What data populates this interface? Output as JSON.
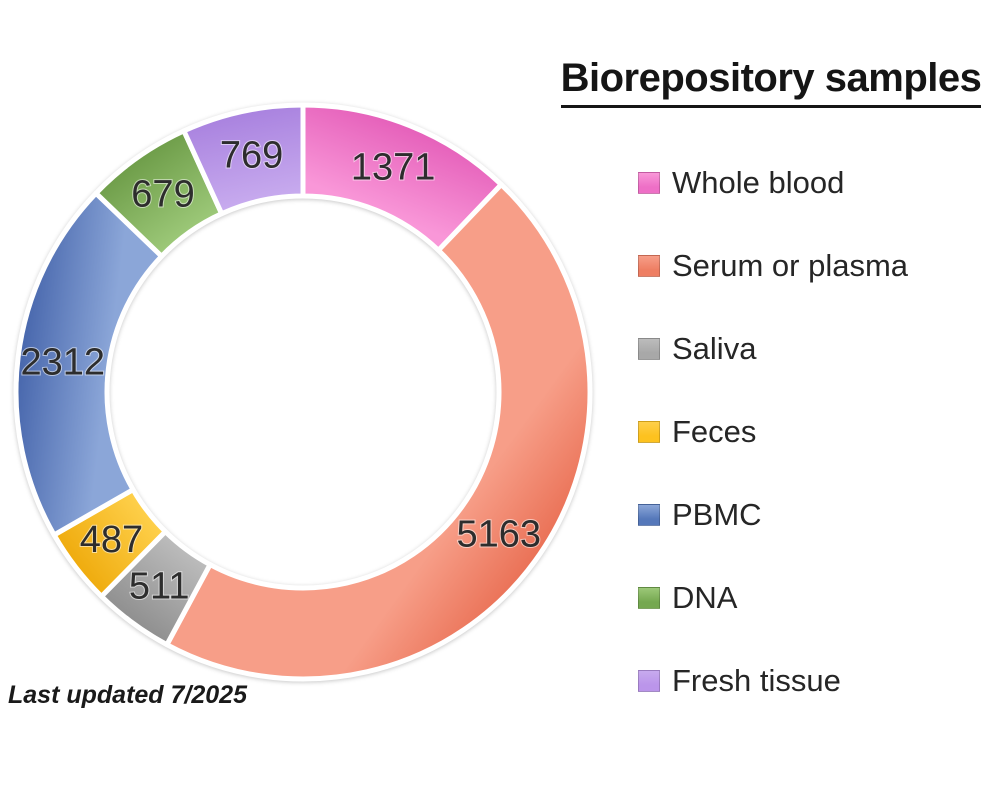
{
  "header": {
    "title": "Biorepository samples"
  },
  "footer": {
    "note": "Last updated 7/2025"
  },
  "chart_data": {
    "type": "pie",
    "subtype": "donut",
    "title": "Biorepository samples",
    "categories": [
      "Whole blood",
      "Serum or plasma",
      "Saliva",
      "Feces",
      "PBMC",
      "DNA",
      "Fresh tissue"
    ],
    "values": [
      1371,
      5163,
      511,
      487,
      2312,
      679,
      769
    ],
    "total": 11292,
    "colors": [
      "#ee6fc6",
      "#ee7e63",
      "#a8a8a8",
      "#fdc21f",
      "#5578ba",
      "#75a850",
      "#bb95ea"
    ],
    "colors_dark": [
      "#e560ba",
      "#ea7156",
      "#8f8f8f",
      "#efab0d",
      "#4766ac",
      "#6e9d49",
      "#a982df"
    ],
    "colors_light": [
      "#f997d8",
      "#f79e88",
      "#bcbcbc",
      "#fed04b",
      "#8ba6d8",
      "#9cc878",
      "#c7aaee"
    ],
    "label_mode": "values",
    "start_angle_deg": 0,
    "direction": "clockwise",
    "hole_ratio": 0.68,
    "separator_color": "#ffffff",
    "legend_position": "right",
    "grid": false
  }
}
